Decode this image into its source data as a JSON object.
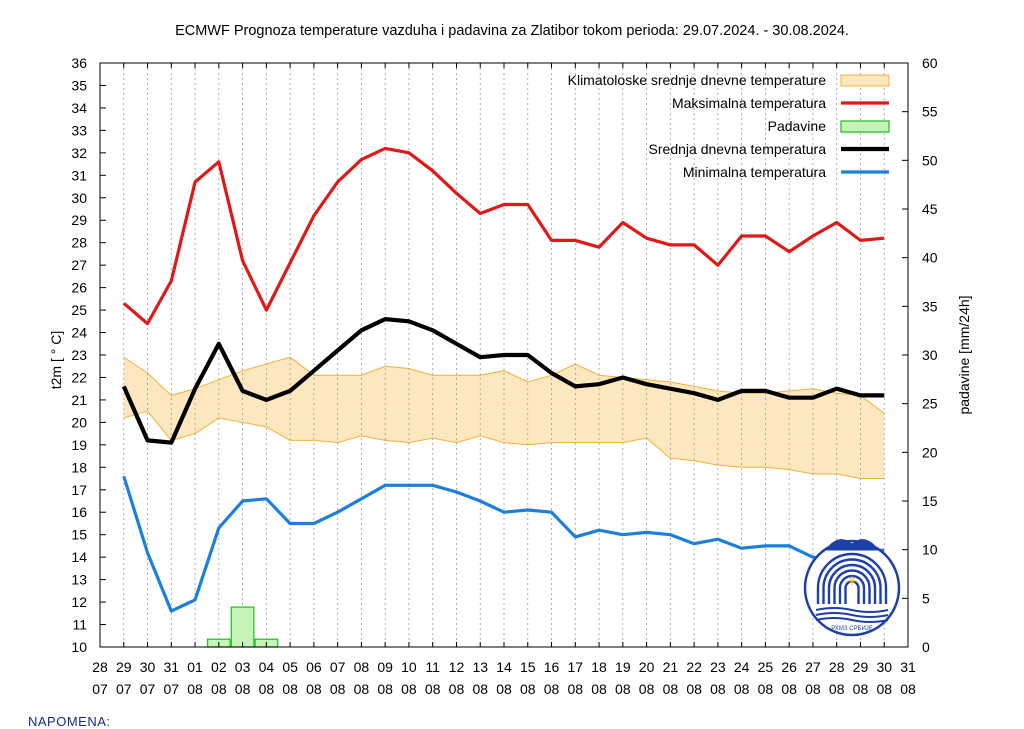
{
  "chart_data": {
    "type": "line",
    "title": "ECMWF Prognoza temperature  vazduha i padavina za Zlatibor tokom perioda: 29.07.2024. - 30.08.2024.",
    "ylabel": "t2m [ ° C]",
    "y2label": "padavine [mm/24h]",
    "ylim": [
      10,
      36
    ],
    "y2lim": [
      0,
      60
    ],
    "y_ticks": [
      "10",
      "11",
      "12",
      "13",
      "14",
      "15",
      "16",
      "17",
      "18",
      "19",
      "20",
      "21",
      "22",
      "23",
      "24",
      "25",
      "26",
      "27",
      "28",
      "29",
      "30",
      "31",
      "32",
      "33",
      "34",
      "35",
      "36"
    ],
    "y2_ticks": [
      "0",
      "5",
      "10",
      "15",
      "20",
      "25",
      "30",
      "35",
      "40",
      "45",
      "50",
      "55",
      "60"
    ],
    "x_ticks": [
      {
        "day": "28",
        "month": "07"
      },
      {
        "day": "29",
        "month": "07"
      },
      {
        "day": "30",
        "month": "07"
      },
      {
        "day": "31",
        "month": "07"
      },
      {
        "day": "01",
        "month": "08"
      },
      {
        "day": "02",
        "month": "08"
      },
      {
        "day": "03",
        "month": "08"
      },
      {
        "day": "04",
        "month": "08"
      },
      {
        "day": "05",
        "month": "08"
      },
      {
        "day": "06",
        "month": "08"
      },
      {
        "day": "07",
        "month": "08"
      },
      {
        "day": "08",
        "month": "08"
      },
      {
        "day": "09",
        "month": "08"
      },
      {
        "day": "10",
        "month": "08"
      },
      {
        "day": "11",
        "month": "08"
      },
      {
        "day": "12",
        "month": "08"
      },
      {
        "day": "13",
        "month": "08"
      },
      {
        "day": "14",
        "month": "08"
      },
      {
        "day": "15",
        "month": "08"
      },
      {
        "day": "16",
        "month": "08"
      },
      {
        "day": "17",
        "month": "08"
      },
      {
        "day": "18",
        "month": "08"
      },
      {
        "day": "19",
        "month": "08"
      },
      {
        "day": "20",
        "month": "08"
      },
      {
        "day": "21",
        "month": "08"
      },
      {
        "day": "22",
        "month": "08"
      },
      {
        "day": "23",
        "month": "08"
      },
      {
        "day": "24",
        "month": "08"
      },
      {
        "day": "25",
        "month": "08"
      },
      {
        "day": "26",
        "month": "08"
      },
      {
        "day": "27",
        "month": "08"
      },
      {
        "day": "28",
        "month": "08"
      },
      {
        "day": "29",
        "month": "08"
      },
      {
        "day": "30",
        "month": "08"
      },
      {
        "day": "31",
        "month": "08"
      }
    ],
    "x_dates": [
      "29.07",
      "30.07",
      "31.07",
      "01.08",
      "02.08",
      "03.08",
      "04.08",
      "05.08",
      "06.08",
      "07.08",
      "08.08",
      "09.08",
      "10.08",
      "11.08",
      "12.08",
      "13.08",
      "14.08",
      "15.08",
      "16.08",
      "17.08",
      "18.08",
      "19.08",
      "20.08",
      "21.08",
      "22.08",
      "23.08",
      "24.08",
      "25.08",
      "26.08",
      "27.08",
      "28.08",
      "29.08",
      "30.08"
    ],
    "grid": "vertical dashed",
    "legend_position": "top-right",
    "series": [
      {
        "name": "Klimatoloske srednje dnevne temperature",
        "kind": "band",
        "color": "#fde7be",
        "edge_color": "#f0b23c",
        "upper": [
          22.9,
          22.2,
          21.2,
          21.5,
          21.9,
          22.3,
          22.6,
          22.9,
          22.1,
          22.1,
          22.1,
          22.5,
          22.4,
          22.1,
          22.1,
          22.1,
          22.3,
          21.8,
          22.1,
          22.6,
          22.1,
          22.0,
          21.9,
          21.8,
          21.6,
          21.4,
          21.3,
          21.3,
          21.4,
          21.5,
          21.3,
          21.2,
          20.4
        ],
        "lower": [
          20.2,
          20.5,
          19.2,
          19.5,
          20.2,
          20.0,
          19.8,
          19.2,
          19.2,
          19.1,
          19.4,
          19.2,
          19.1,
          19.3,
          19.1,
          19.4,
          19.1,
          19.0,
          19.1,
          19.1,
          19.1,
          19.1,
          19.3,
          18.4,
          18.3,
          18.1,
          18.0,
          18.0,
          17.9,
          17.7,
          17.7,
          17.5,
          17.5
        ]
      },
      {
        "name": "Maksimalna temperatura",
        "kind": "line",
        "color": "#e01818",
        "values": [
          25.3,
          24.4,
          26.3,
          30.7,
          31.6,
          27.2,
          25.0,
          27.1,
          29.2,
          30.7,
          31.7,
          32.2,
          32.0,
          31.2,
          30.2,
          29.3,
          29.7,
          29.7,
          28.1,
          28.1,
          27.8,
          28.9,
          28.2,
          27.9,
          27.9,
          27.0,
          28.3,
          28.3,
          27.6,
          28.3,
          28.9,
          28.1,
          28.2
        ]
      },
      {
        "name": "Padavine",
        "kind": "bar",
        "color": "#c6f3b6",
        "edge_color": "#2fbf2f",
        "values": [
          0,
          0,
          0,
          0,
          0.8,
          4.1,
          0.8,
          0,
          0,
          0,
          0,
          0,
          0,
          0,
          0,
          0,
          0,
          0,
          0,
          0,
          0,
          0,
          0,
          0,
          0,
          0,
          0,
          0,
          0,
          0,
          0,
          0,
          0
        ]
      },
      {
        "name": "Srednja dnevna temperatura",
        "kind": "line",
        "color": "#000000",
        "values": [
          21.6,
          19.2,
          19.1,
          21.5,
          23.5,
          21.4,
          21.0,
          21.4,
          22.3,
          23.2,
          24.1,
          24.6,
          24.5,
          24.1,
          23.5,
          22.9,
          23.0,
          23.0,
          22.2,
          21.6,
          21.7,
          22.0,
          21.7,
          21.5,
          21.3,
          21.0,
          21.4,
          21.4,
          21.1,
          21.1,
          21.5,
          21.2,
          21.2
        ]
      },
      {
        "name": "Minimalna temperatura",
        "kind": "line",
        "color": "#1c7fde",
        "values": [
          17.6,
          14.2,
          11.6,
          12.1,
          15.3,
          16.5,
          16.6,
          15.5,
          15.5,
          16.0,
          16.6,
          17.2,
          17.2,
          17.2,
          16.9,
          16.5,
          16.0,
          16.1,
          16.0,
          14.9,
          15.2,
          15.0,
          15.1,
          15.0,
          14.6,
          14.8,
          14.4,
          14.5,
          14.5,
          14.0,
          13.9,
          14.3,
          14.3
        ]
      }
    ]
  },
  "logo": {
    "name": "rhmz-logo",
    "text": "РХМЗ СРБИЈЕ",
    "color": "#1f3fa8"
  },
  "note": {
    "text": "NAPOMENA:"
  }
}
